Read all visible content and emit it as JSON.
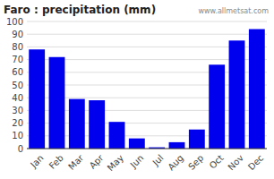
{
  "chart_data": {
    "type": "bar",
    "title": "Faro : precipitation (mm)",
    "categories": [
      "Jan",
      "Feb",
      "Mar",
      "Apr",
      "May",
      "Jun",
      "Jul",
      "Aug",
      "Sep",
      "Oct",
      "Nov",
      "Dec"
    ],
    "values": [
      78,
      72,
      39,
      38,
      21,
      8,
      1,
      5,
      15,
      66,
      85,
      94
    ],
    "color": "#0000EE",
    "ylim": [
      0,
      100
    ],
    "yticks": [
      0,
      10,
      20,
      30,
      40,
      50,
      60,
      70,
      80,
      90,
      100
    ],
    "grid": true,
    "annotations": [
      "www.allmetsat.com"
    ]
  }
}
